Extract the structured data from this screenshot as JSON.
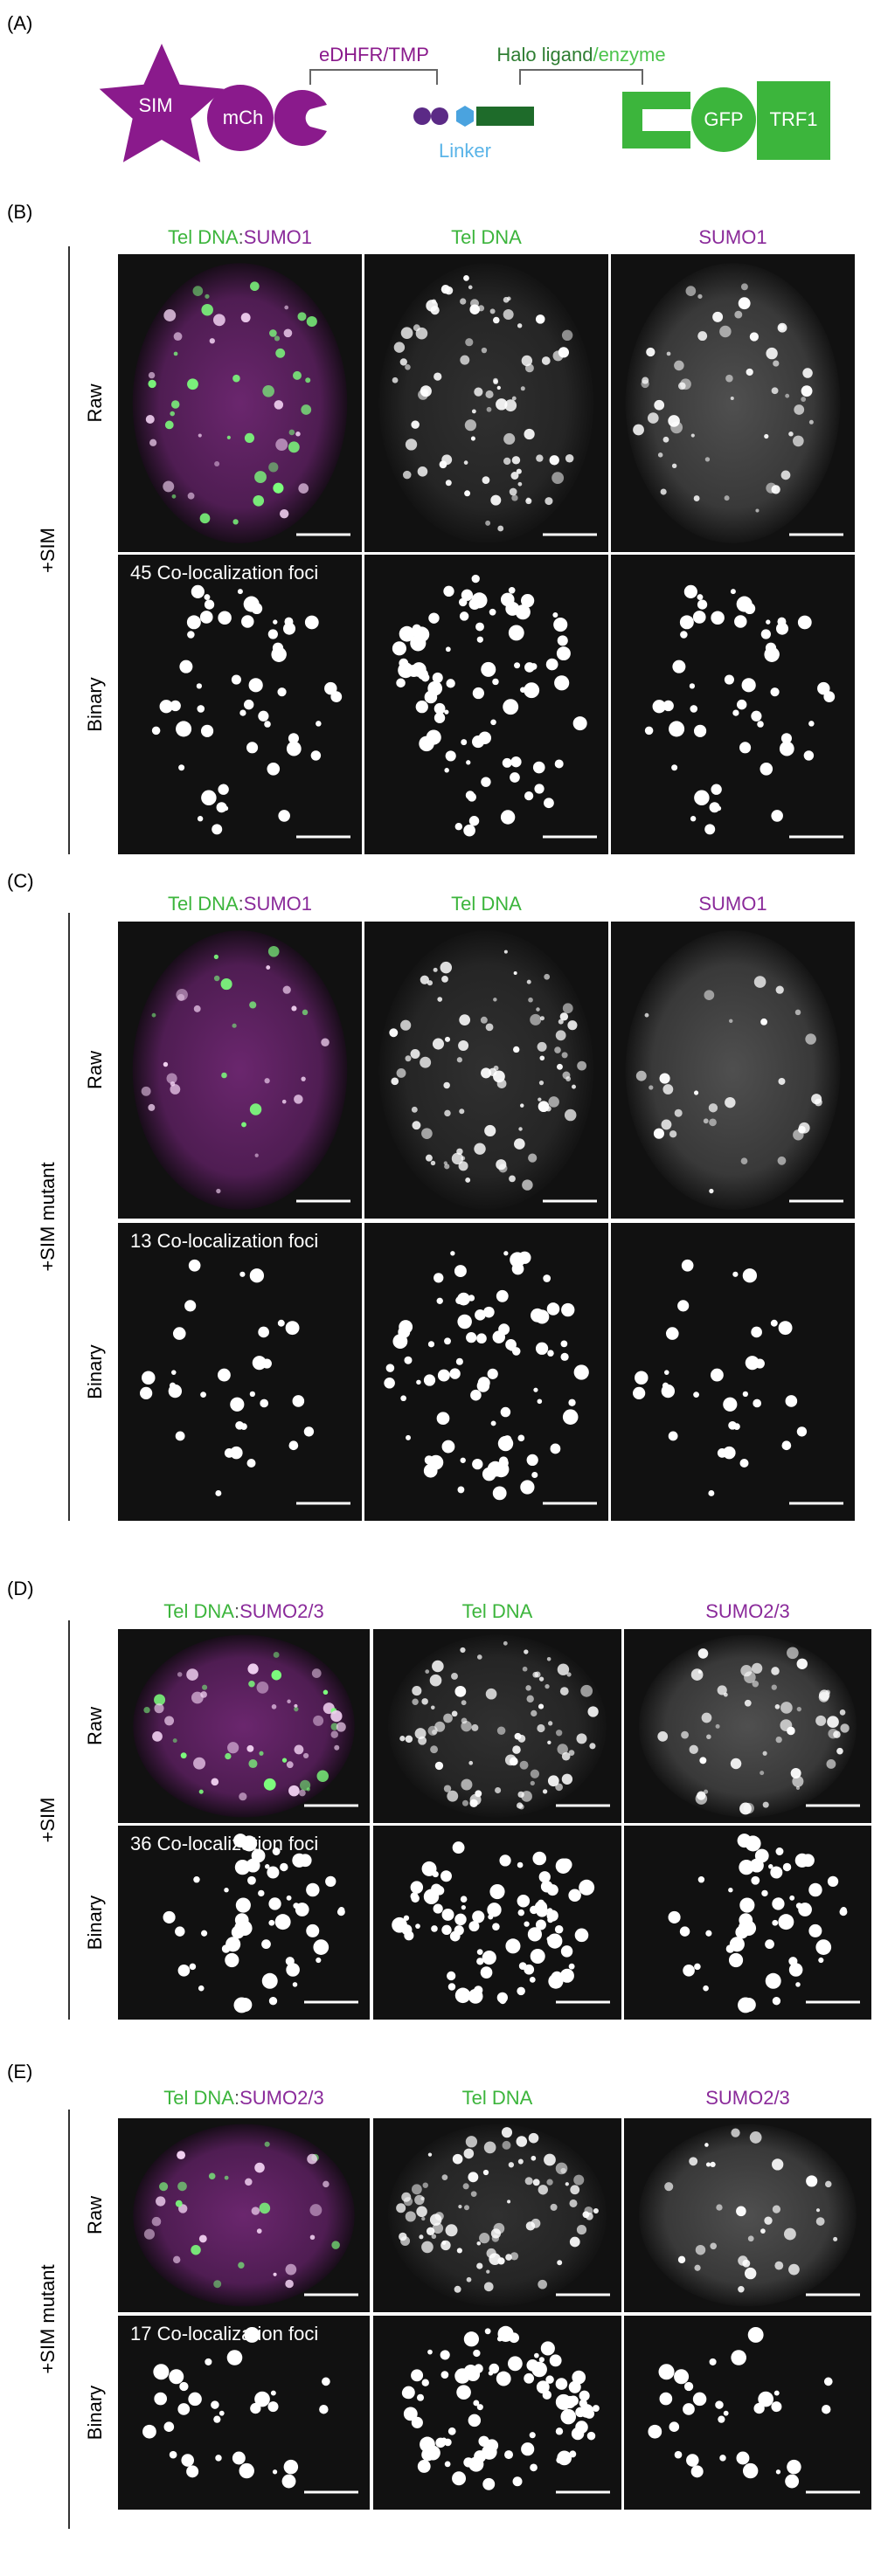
{
  "panel_a": {
    "label": "(A)",
    "sim": "SIM",
    "mch": "mCh",
    "edhfr": "eDHFR/TMP",
    "linker": "Linker",
    "halo_ligand": "Halo ligand",
    "halo_enzyme": "/enzyme",
    "gfp": "GFP",
    "trf1": "TRF1"
  },
  "panels": [
    {
      "label": "(B)",
      "condition": "+SIM",
      "columns": [
        {
          "tel": "Tel DNA",
          "sep": ":",
          "sumo": "SUMO1"
        },
        {
          "tel": "Tel DNA"
        },
        {
          "sumo": "SUMO1"
        }
      ],
      "rows": [
        "Raw",
        "Binary"
      ],
      "foci": "45 Co-localization foci"
    },
    {
      "label": "(C)",
      "condition": "+SIM mutant",
      "columns": [
        {
          "tel": "Tel DNA",
          "sep": ":",
          "sumo": "SUMO1"
        },
        {
          "tel": "Tel DNA"
        },
        {
          "sumo": "SUMO1"
        }
      ],
      "rows": [
        "Raw",
        "Binary"
      ],
      "foci": "13 Co-localization foci"
    },
    {
      "label": "(D)",
      "condition": "+SIM",
      "columns": [
        {
          "tel": "Tel DNA",
          "sep": ":",
          "sumo": "SUMO2/3"
        },
        {
          "tel": "Tel DNA"
        },
        {
          "sumo": "SUMO2/3"
        }
      ],
      "rows": [
        "Raw",
        "Binary"
      ],
      "foci": "36 Co-localization foci"
    },
    {
      "label": "(E)",
      "condition": "+SIM mutant",
      "columns": [
        {
          "tel": "Tel DNA",
          "sep": ":",
          "sumo": "SUMO2/3"
        },
        {
          "tel": "Tel DNA"
        },
        {
          "sumo": "SUMO2/3"
        }
      ],
      "rows": [
        "Raw",
        "Binary"
      ],
      "foci": "17 Co-localization foci"
    }
  ]
}
